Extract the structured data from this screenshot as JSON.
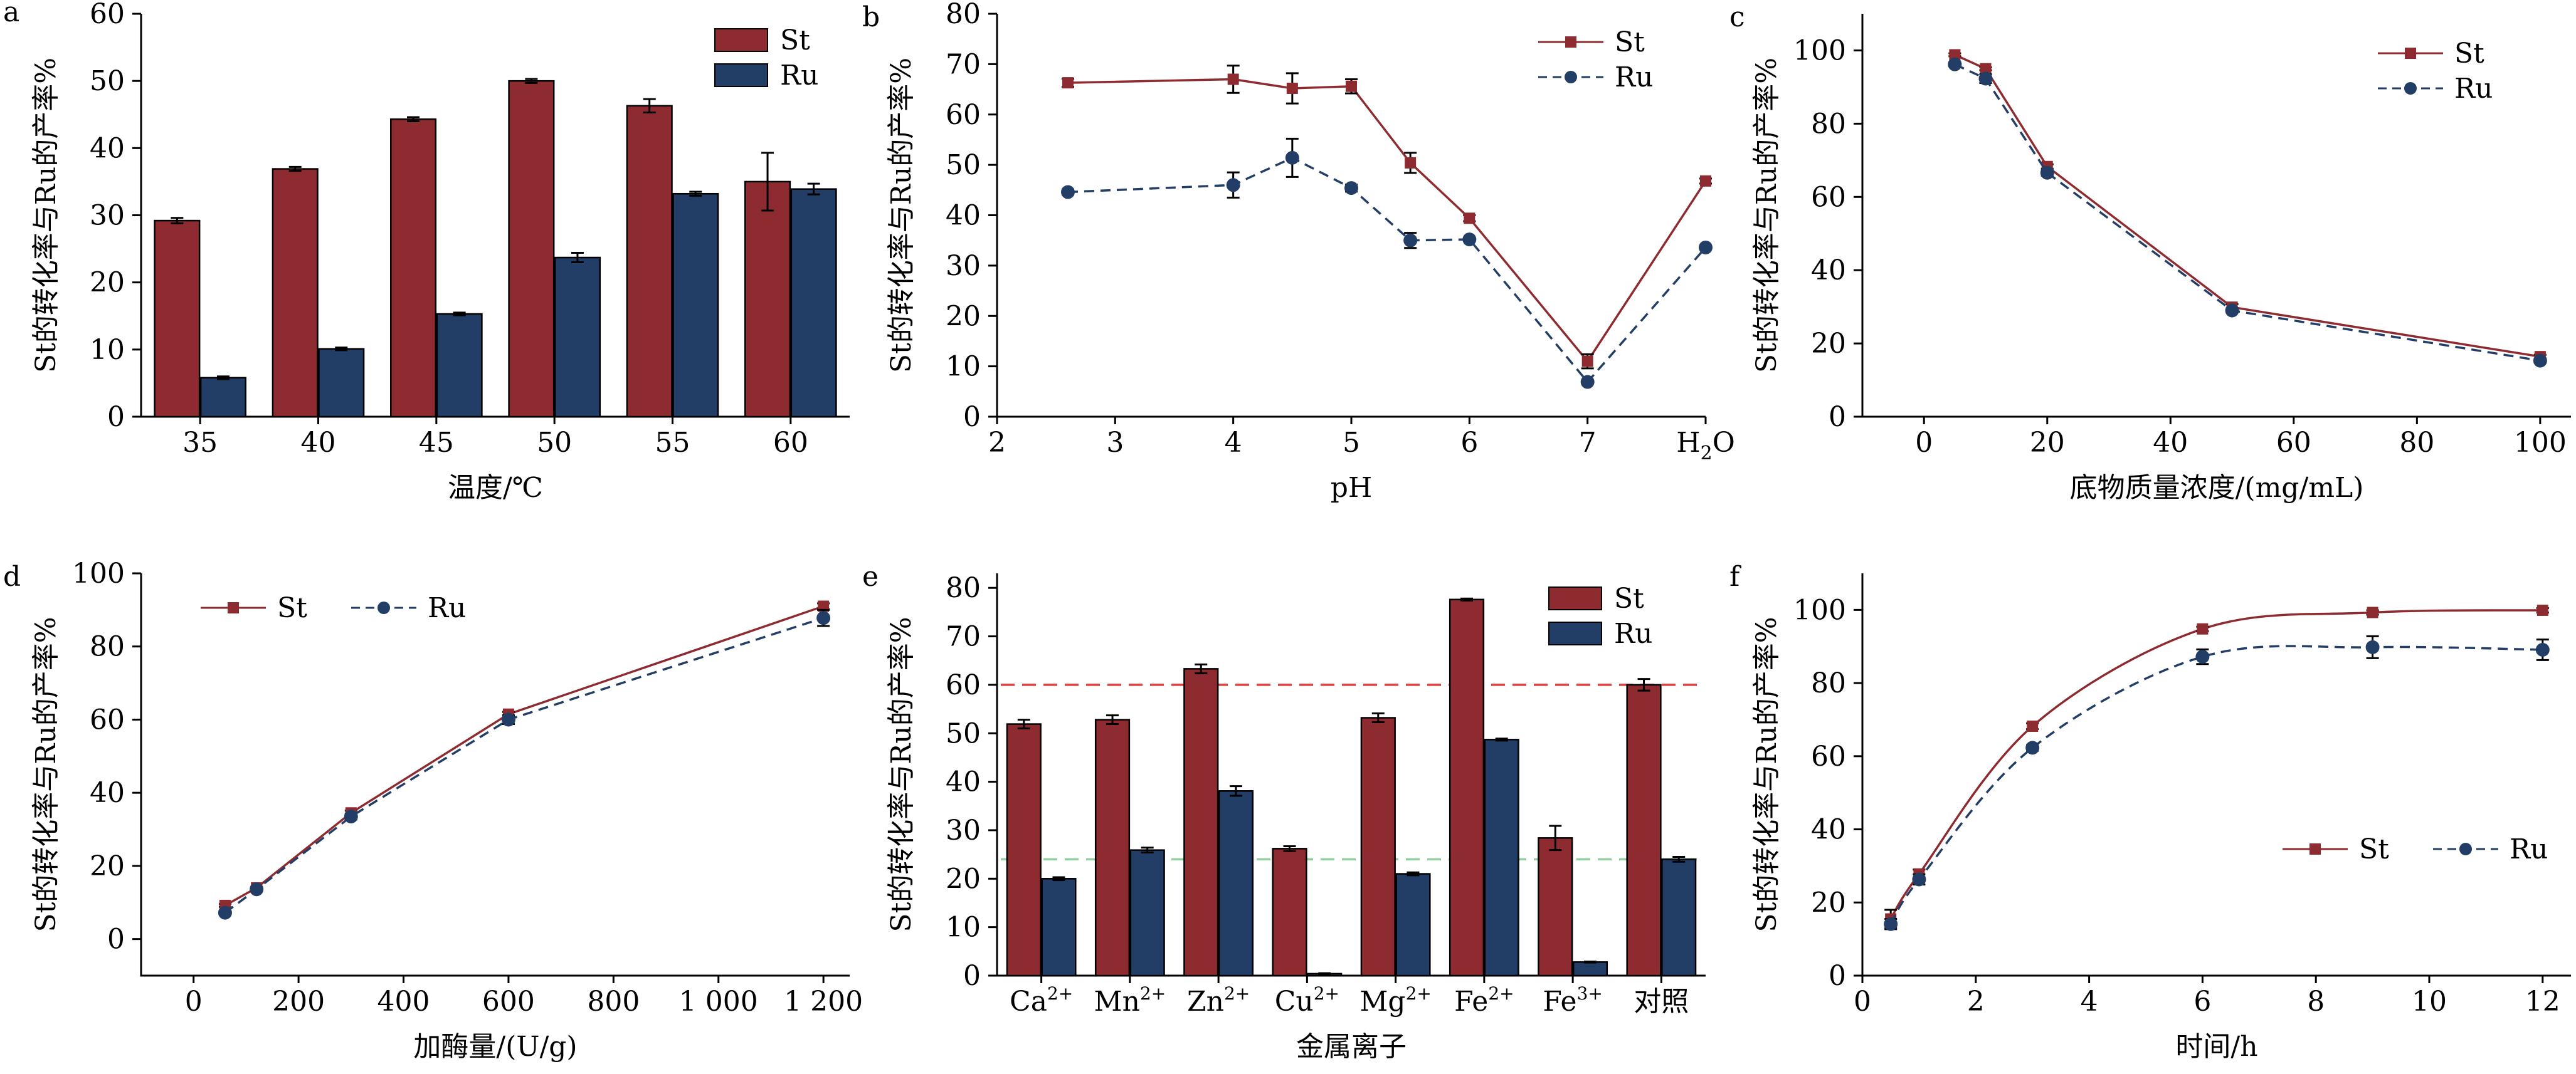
{
  "colors": {
    "st": "#8e2b30",
    "ru": "#233e66",
    "ref_st": "#e23b3b",
    "ref_ru": "#8fce9c"
  },
  "y_axis_label": "St的转化率与Ru的产率%",
  "chart_data": [
    {
      "panel": "a",
      "type": "bar",
      "xlabel": "温度/℃",
      "ylabel": "St的转化率与Ru的产率%",
      "ylim": [
        0,
        60
      ],
      "yticks": [
        0,
        10,
        20,
        30,
        40,
        50,
        60
      ],
      "categories": [
        "35",
        "40",
        "45",
        "50",
        "55",
        "60"
      ],
      "legend_position": "top-right",
      "series": [
        {
          "name": "St",
          "values": [
            29.2,
            36.9,
            44.3,
            50.0,
            46.3,
            35.0
          ],
          "errors": [
            0.4,
            0.3,
            0.3,
            0.3,
            1.0,
            4.3
          ]
        },
        {
          "name": "Ru",
          "values": [
            5.8,
            10.1,
            15.3,
            23.7,
            33.2,
            33.9
          ],
          "errors": [
            0.2,
            0.2,
            0.2,
            0.7,
            0.3,
            0.8
          ]
        }
      ]
    },
    {
      "panel": "b",
      "type": "line",
      "xlabel": "pH",
      "ylabel": "St的转化率与Ru的产率%",
      "ylim": [
        0,
        80
      ],
      "yticks": [
        0,
        10,
        20,
        30,
        40,
        50,
        60,
        70,
        80
      ],
      "xlim": [
        2,
        8
      ],
      "xticks": [
        "2",
        "3",
        "4",
        "5",
        "6",
        "7"
      ],
      "h2o_label": {
        "main": "H",
        "sub": "2",
        "tail": "O"
      },
      "legend_position": "top-right",
      "series": [
        {
          "name": "St",
          "x": [
            2.6,
            4.0,
            4.5,
            5.0,
            5.5,
            6.0,
            7.0,
            8.0
          ],
          "values": [
            66.3,
            67.0,
            65.2,
            65.6,
            50.4,
            39.4,
            11.0,
            46.8
          ],
          "errors": [
            0.8,
            2.7,
            3.0,
            1.4,
            2.0,
            0.6,
            1.4,
            0.5
          ]
        },
        {
          "name": "Ru",
          "x": [
            2.6,
            4.0,
            4.5,
            5.0,
            5.5,
            6.0,
            7.0,
            8.0
          ],
          "values": [
            44.6,
            46.0,
            51.4,
            45.4,
            35.0,
            35.2,
            6.9,
            33.6
          ],
          "errors": [
            0.5,
            2.5,
            3.8,
            0.7,
            1.5,
            0.3,
            0.3,
            0.3
          ]
        }
      ]
    },
    {
      "panel": "c",
      "type": "line",
      "xlabel": "底物质量浓度/(mg/mL)",
      "ylabel": "St的转化率与Ru的产率%",
      "ylim": [
        0,
        110
      ],
      "yticks": [
        0,
        20,
        40,
        60,
        80,
        100
      ],
      "xlim": [
        -10,
        105
      ],
      "xticks": [
        0,
        20,
        40,
        60,
        80,
        100
      ],
      "legend_position": "top-right",
      "series": [
        {
          "name": "St",
          "x": [
            5,
            10,
            20,
            50,
            100
          ],
          "values": [
            98.8,
            95.0,
            68.3,
            29.9,
            16.4
          ],
          "errors": [
            0.4,
            0.4,
            0.6,
            0.8,
            0.5
          ]
        },
        {
          "name": "Ru",
          "x": [
            5,
            10,
            20,
            50,
            100
          ],
          "values": [
            96.2,
            92.3,
            66.6,
            29.0,
            15.3
          ],
          "errors": [
            0.6,
            1.2,
            0.8,
            0.6,
            0.6
          ]
        }
      ]
    },
    {
      "panel": "d",
      "type": "line",
      "xlabel": "加酶量/(U/g)",
      "ylabel": "St的转化率与Ru的产率%",
      "ylim": [
        -10,
        100
      ],
      "yticks": [
        0,
        20,
        40,
        60,
        80,
        100
      ],
      "xlim": [
        -100,
        1250
      ],
      "xticks": [
        "0",
        "200",
        "400",
        "600",
        "800",
        "1 000",
        "1 200"
      ],
      "legend_position": "top-left",
      "series": [
        {
          "name": "St",
          "x": [
            60,
            120,
            300,
            600,
            1200
          ],
          "values": [
            9.2,
            14.0,
            34.5,
            61.5,
            91.0
          ],
          "errors": [
            0.4,
            0.3,
            0.6,
            0.6,
            0.8
          ]
        },
        {
          "name": "Ru",
          "x": [
            60,
            120,
            300,
            600,
            1200
          ],
          "values": [
            7.2,
            13.6,
            33.5,
            60.0,
            87.8
          ],
          "errors": [
            0.5,
            0.5,
            0.8,
            1.2,
            2.2
          ]
        }
      ]
    },
    {
      "panel": "e",
      "type": "bar",
      "xlabel": "金属离子",
      "ylabel": "St的转化率与Ru的产率%",
      "ylim": [
        0,
        83
      ],
      "yticks": [
        0,
        10,
        20,
        30,
        40,
        50,
        60,
        70,
        80
      ],
      "categories": [
        {
          "base": "Ca",
          "sup": "2+"
        },
        {
          "base": "Mn",
          "sup": "2+"
        },
        {
          "base": "Zn",
          "sup": "2+"
        },
        {
          "base": "Cu",
          "sup": "2+"
        },
        {
          "base": "Mg",
          "sup": "2+"
        },
        {
          "base": "Fe",
          "sup": "2+"
        },
        {
          "base": "Fe",
          "sup": "3+"
        },
        {
          "base": "对照",
          "sup": ""
        }
      ],
      "reference_lines": [
        {
          "series": "St",
          "value": 60
        },
        {
          "series": "Ru",
          "value": 24
        }
      ],
      "legend_position": "top-right",
      "series": [
        {
          "name": "St",
          "values": [
            51.9,
            52.8,
            63.3,
            26.2,
            53.2,
            77.6,
            28.4,
            60.0
          ],
          "errors": [
            0.9,
            0.9,
            0.9,
            0.5,
            0.9,
            0.2,
            2.5,
            1.2
          ]
        },
        {
          "name": "Ru",
          "values": [
            20.0,
            25.9,
            38.1,
            0.4,
            21.0,
            48.7,
            2.8,
            24.0
          ],
          "errors": [
            0.3,
            0.5,
            1.0,
            0.1,
            0.3,
            0.2,
            0.1,
            0.5
          ]
        }
      ]
    },
    {
      "panel": "f",
      "type": "line",
      "xlabel": "时间/h",
      "ylabel": "St的转化率与Ru的产率%",
      "ylim": [
        0,
        110
      ],
      "yticks": [
        0,
        20,
        40,
        60,
        80,
        100
      ],
      "xlim": [
        0,
        12.5
      ],
      "xticks": [
        0,
        2,
        4,
        6,
        8,
        10,
        12
      ],
      "legend_position": "center-right",
      "series": [
        {
          "name": "St",
          "x": [
            0.5,
            1,
            3,
            6,
            9,
            12
          ],
          "values": [
            15.5,
            27.8,
            68.2,
            94.8,
            99.3,
            99.9
          ],
          "errors": [
            2.5,
            1.2,
            0.8,
            0.6,
            0.6,
            0.6
          ]
        },
        {
          "name": "Ru",
          "x": [
            0.5,
            1,
            3,
            6,
            9,
            12
          ],
          "values": [
            14.1,
            26.3,
            62.3,
            87.2,
            89.8,
            89.1
          ],
          "errors": [
            1.4,
            1.4,
            0.8,
            2.0,
            3.0,
            2.8
          ]
        }
      ]
    }
  ]
}
